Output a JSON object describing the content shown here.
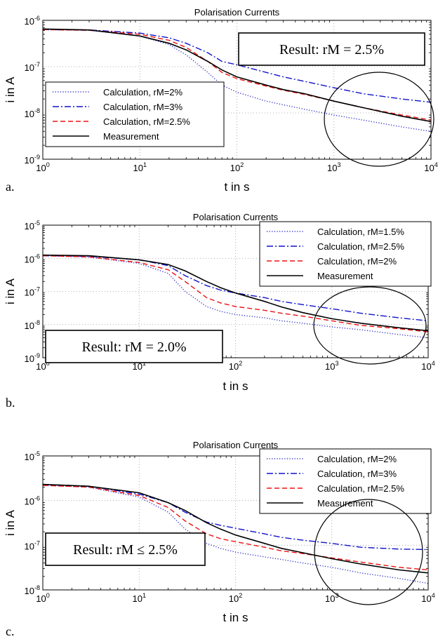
{
  "chart_data": [
    {
      "type": "line",
      "panel": "a.",
      "title": "Polarisation Currents",
      "xlabel": "t in s",
      "ylabel": "i in A",
      "xscale": "log",
      "yscale": "log",
      "xlim": [
        1,
        10000
      ],
      "ylim": [
        1e-09,
        1e-06
      ],
      "grid": true,
      "legend_position": "left",
      "result_label": "Result: rM = 2.5%",
      "xticks": [
        {
          "base": "10",
          "exp": "0"
        },
        {
          "base": "10",
          "exp": "1"
        },
        {
          "base": "10",
          "exp": "2"
        },
        {
          "base": "10",
          "exp": "3"
        },
        {
          "base": "10",
          "exp": "4"
        }
      ],
      "yticks": [
        {
          "base": "10",
          "exp": "-9"
        },
        {
          "base": "10",
          "exp": "-8"
        },
        {
          "base": "10",
          "exp": "-7"
        },
        {
          "base": "10",
          "exp": "-6"
        }
      ],
      "x": [
        1,
        3,
        10,
        20,
        30,
        50,
        70,
        100,
        200,
        300,
        500,
        1000,
        2000,
        5000,
        10000
      ],
      "series": [
        {
          "name": "Calculation, rM=2%",
          "style": "dotted",
          "color": "#3333cc",
          "values": [
            6.3e-07,
            6.1e-07,
            4.6e-07,
            3e-07,
            1.8e-07,
            7.5e-08,
            4e-08,
            2.8e-08,
            1.8e-08,
            1.5e-08,
            1.2e-08,
            9e-09,
            7e-09,
            5e-09,
            4e-09
          ]
        },
        {
          "name": "Calculation, rM=3%",
          "style": "dashdot",
          "color": "#1111cc",
          "values": [
            6.3e-07,
            6.2e-07,
            5.3e-07,
            4.2e-07,
            3.2e-07,
            2e-07,
            1.3e-07,
            1.1e-07,
            7.5e-08,
            6e-08,
            4.8e-08,
            3.5e-08,
            2.6e-08,
            2e-08,
            1.7e-08
          ]
        },
        {
          "name": "Calculation, rM=2.5%",
          "style": "dashed",
          "color": "#ee1111",
          "values": [
            6.3e-07,
            6.1e-07,
            5e-07,
            3.7e-07,
            2.6e-07,
            1.3e-07,
            7.5e-08,
            5.5e-08,
            3.8e-08,
            3.1e-08,
            2.5e-08,
            1.8e-08,
            1.3e-08,
            9e-09,
            7e-09
          ]
        },
        {
          "name": "Measurement",
          "style": "solid",
          "color": "#000000",
          "values": [
            6.5e-07,
            6.2e-07,
            4.6e-07,
            3.2e-07,
            2.3e-07,
            1.3e-07,
            8.5e-08,
            6e-08,
            4e-08,
            3.2e-08,
            2.6e-08,
            1.8e-08,
            1.3e-08,
            8.5e-09,
            6.5e-09
          ]
        }
      ]
    },
    {
      "type": "line",
      "panel": "b.",
      "title": "Polarisation Currents",
      "xlabel": "t in s",
      "ylabel": "i in A",
      "xscale": "log",
      "yscale": "log",
      "xlim": [
        1,
        10000
      ],
      "ylim": [
        1e-09,
        1e-05
      ],
      "grid": true,
      "legend_position": "top-right",
      "result_label": "Result: rM = 2.0%",
      "xticks": [
        {
          "base": "10",
          "exp": "0"
        },
        {
          "base": "10",
          "exp": "1"
        },
        {
          "base": "10",
          "exp": "2"
        },
        {
          "base": "10",
          "exp": "3"
        },
        {
          "base": "10",
          "exp": "4"
        }
      ],
      "yticks": [
        {
          "base": "10",
          "exp": "-9"
        },
        {
          "base": "10",
          "exp": "-8"
        },
        {
          "base": "10",
          "exp": "-7"
        },
        {
          "base": "10",
          "exp": "-6"
        },
        {
          "base": "10",
          "exp": "-5"
        }
      ],
      "x": [
        1,
        3,
        10,
        20,
        30,
        50,
        70,
        100,
        200,
        300,
        500,
        1000,
        2000,
        5000,
        10000
      ],
      "series": [
        {
          "name": "Calculation, rM=1.5%",
          "style": "dotted",
          "color": "#3333cc",
          "values": [
            1.2e-06,
            1.1e-06,
            7e-07,
            3.5e-07,
            1e-07,
            3.5e-08,
            2.5e-08,
            2e-08,
            1.6e-08,
            1.3e-08,
            1.1e-08,
            8.5e-09,
            7e-09,
            5e-09,
            4e-09
          ]
        },
        {
          "name": "Calculation, rM=2.5%",
          "style": "dashdot",
          "color": "#1111cc",
          "values": [
            1.2e-06,
            1.15e-06,
            9e-07,
            6e-07,
            3e-07,
            1.5e-07,
            1.1e-07,
            9e-08,
            6.5e-08,
            5e-08,
            4e-08,
            3e-08,
            2.2e-08,
            1.6e-08,
            1.3e-08
          ]
        },
        {
          "name": "Calculation, rM=2%",
          "style": "dashed",
          "color": "#ee1111",
          "values": [
            1.2e-06,
            1.1e-06,
            7.5e-07,
            4.5e-07,
            2e-07,
            6.5e-08,
            4.5e-08,
            3.5e-08,
            2.7e-08,
            2.2e-08,
            1.8e-08,
            1.3e-08,
            9.5e-09,
            7.5e-09,
            6e-09
          ]
        },
        {
          "name": "Measurement",
          "style": "solid",
          "color": "#000000",
          "values": [
            1.25e-06,
            1.2e-06,
            9e-07,
            6.5e-07,
            4.2e-07,
            2e-07,
            1.3e-07,
            9e-08,
            5e-08,
            3.4e-08,
            2.3e-08,
            1.5e-08,
            1.1e-08,
            8e-09,
            6.5e-09
          ]
        }
      ]
    },
    {
      "type": "line",
      "panel": "c.",
      "title": "Polarisation Currents",
      "xlabel": "t in s",
      "ylabel": "i in A",
      "xscale": "log",
      "yscale": "log",
      "xlim": [
        1,
        10000
      ],
      "ylim": [
        1e-08,
        1e-05
      ],
      "grid": true,
      "legend_position": "top-right",
      "result_label": "Result: rM ≤ 2.5%",
      "xticks": [
        {
          "base": "10",
          "exp": "0"
        },
        {
          "base": "10",
          "exp": "1"
        },
        {
          "base": "10",
          "exp": "2"
        },
        {
          "base": "10",
          "exp": "3"
        },
        {
          "base": "10",
          "exp": "4"
        }
      ],
      "yticks": [
        {
          "base": "10",
          "exp": "-8"
        },
        {
          "base": "10",
          "exp": "-7"
        },
        {
          "base": "10",
          "exp": "-6"
        },
        {
          "base": "10",
          "exp": "-5"
        }
      ],
      "x": [
        1,
        3,
        10,
        20,
        30,
        50,
        70,
        100,
        200,
        300,
        500,
        1000,
        2000,
        5000,
        10000
      ],
      "series": [
        {
          "name": "Calculation, rM=2%",
          "style": "dotted",
          "color": "#3333cc",
          "values": [
            2.2e-06,
            2e-06,
            1.2e-06,
            5.5e-07,
            2.3e-07,
            1.1e-07,
            8.5e-08,
            7e-08,
            5.5e-08,
            4.8e-08,
            4e-08,
            3.2e-08,
            2.4e-08,
            1.8e-08,
            1.4e-08
          ]
        },
        {
          "name": "Calculation, rM=3%",
          "style": "dashdot",
          "color": "#1111cc",
          "values": [
            2.3e-06,
            2.1e-06,
            1.4e-06,
            9e-07,
            5.5e-07,
            3.3e-07,
            2.8e-07,
            2.4e-07,
            1.8e-07,
            1.5e-07,
            1.3e-07,
            1.1e-07,
            9e-08,
            8.2e-08,
            8e-08
          ]
        },
        {
          "name": "Calculation, rM=2.5%",
          "style": "dashed",
          "color": "#ee1111",
          "values": [
            2.2e-06,
            2e-06,
            1.3e-06,
            7e-07,
            3.5e-07,
            1.8e-07,
            1.4e-07,
            1.2e-07,
            9e-08,
            7.5e-08,
            6.5e-08,
            5.2e-08,
            4.2e-08,
            3.2e-08,
            2.8e-08
          ]
        },
        {
          "name": "Measurement",
          "style": "solid",
          "color": "#000000",
          "values": [
            2.3e-06,
            2.1e-06,
            1.5e-06,
            9e-07,
            6e-07,
            3.2e-07,
            2.3e-07,
            1.7e-07,
            1.1e-07,
            8.5e-08,
            6.8e-08,
            5e-08,
            3.8e-08,
            2.8e-08,
            2.4e-08
          ]
        }
      ]
    }
  ]
}
